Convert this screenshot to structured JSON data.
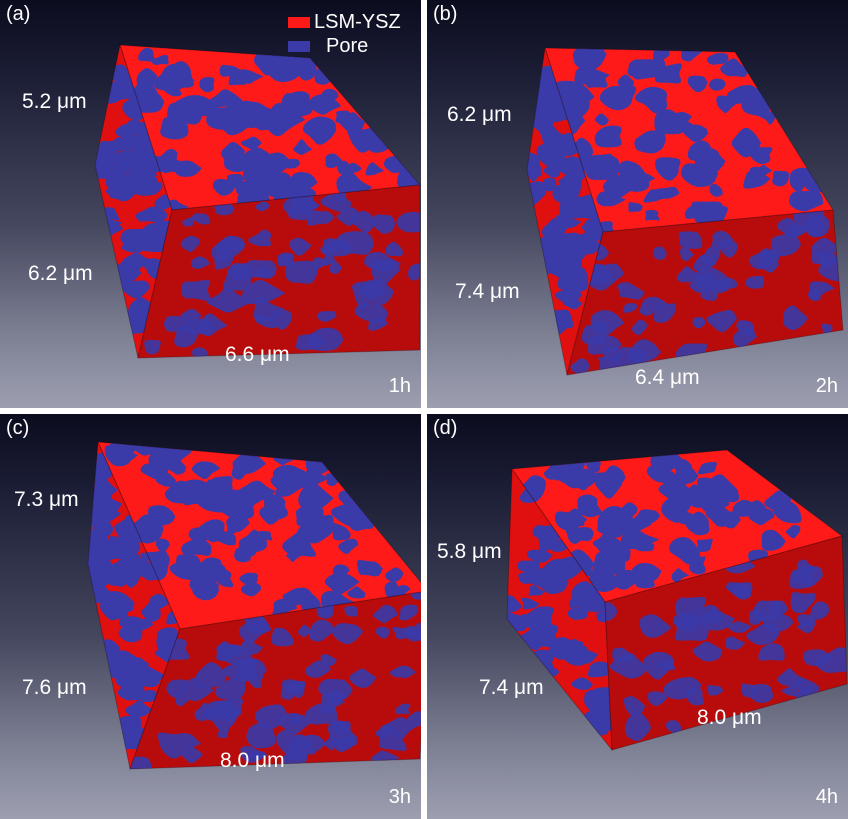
{
  "legend": {
    "items": [
      {
        "label": "LSM-YSZ",
        "color": "#ff1a1a"
      },
      {
        "label": "Pore",
        "color": "#3a3aa8"
      }
    ]
  },
  "panels": [
    {
      "label": "(a)",
      "time": "1h",
      "dim_top": "5.2 μm",
      "dim_side": "6.2 μm",
      "dim_bottom": "6.6 μm"
    },
    {
      "label": "(b)",
      "time": "2h",
      "dim_top": "6.2 μm",
      "dim_side": "7.4 μm",
      "dim_bottom": "6.4 μm"
    },
    {
      "label": "(c)",
      "time": "3h",
      "dim_top": "7.3 μm",
      "dim_side": "7.6 μm",
      "dim_bottom": "8.0 μm"
    },
    {
      "label": "(d)",
      "time": "4h",
      "dim_top": "5.8 μm",
      "dim_side": "7.4 μm",
      "dim_bottom": "8.0 μm"
    }
  ],
  "colors": {
    "solid_top": "#ff1a1a",
    "solid_left": "#e01010",
    "solid_right": "#b80c0c",
    "pore": "#3a3aa8",
    "background_dark": "#0b0c1e",
    "background_light": "#9d9fb1"
  }
}
